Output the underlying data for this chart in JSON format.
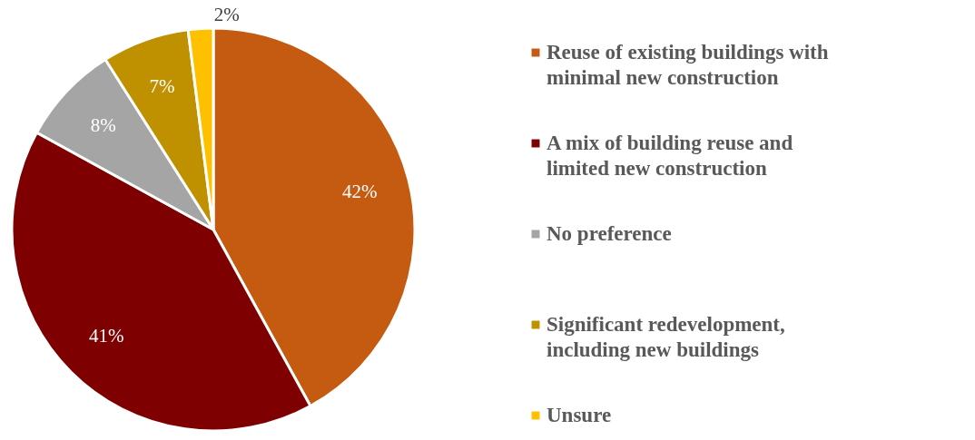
{
  "chart_data": {
    "type": "pie",
    "categories": [
      "Reuse of existing buildings with minimal new construction",
      "A mix of building reuse and limited new construction",
      "No preference",
      "Significant redevelopment, including new buildings",
      "Unsure"
    ],
    "values": [
      42,
      41,
      8,
      7,
      2
    ],
    "colors": [
      "#c55a11",
      "#7f0000",
      "#a5a5a5",
      "#bf9000",
      "#ffc000"
    ],
    "value_labels": [
      "42%",
      "41%",
      "8%",
      "7%",
      "2%"
    ],
    "legend": "right"
  }
}
